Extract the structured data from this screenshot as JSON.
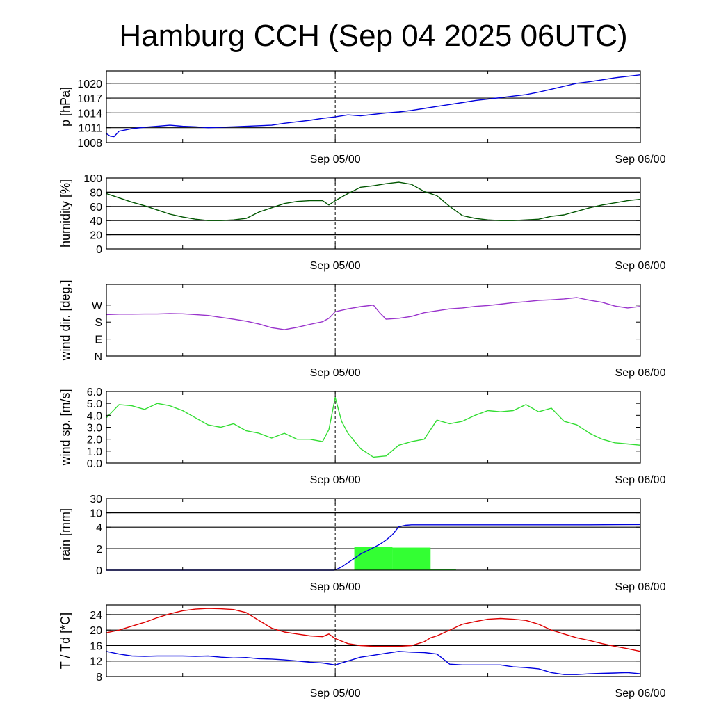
{
  "title": "Hamburg CCH (Sep 04 2025 06UTC)",
  "chart_data": [
    {
      "type": "line",
      "name": "pressure",
      "ylabel": "p [hPa]",
      "ylim": [
        1008,
        1022.5
      ],
      "yticks": [
        1008,
        1011,
        1014,
        1017,
        1020
      ],
      "xlim": [
        "Sep 04 06UTC",
        "Sep 06 00UTC"
      ],
      "xtick_labels": [
        "Sep 05/00",
        "Sep 06/00"
      ],
      "grid": "horizontal",
      "series": [
        {
          "color": "#0000dd",
          "x": [
            6,
            6.3,
            6.6,
            7,
            8,
            9,
            10,
            11,
            12,
            13,
            14,
            15,
            16,
            17,
            18,
            19,
            20,
            21,
            22,
            23,
            24,
            25,
            26,
            27,
            28,
            29,
            30,
            31,
            32,
            33,
            34,
            35,
            36,
            37,
            38,
            39,
            40,
            41,
            42,
            43,
            44,
            45,
            46,
            47,
            48
          ],
          "y": [
            1009.8,
            1009.3,
            1009.2,
            1010.3,
            1010.8,
            1011.1,
            1011.3,
            1011.5,
            1011.3,
            1011.2,
            1011,
            1011.1,
            1011.2,
            1011.3,
            1011.4,
            1011.5,
            1011.9,
            1012.2,
            1012.5,
            1012.9,
            1013.2,
            1013.6,
            1013.4,
            1013.7,
            1014,
            1014.2,
            1014.5,
            1014.9,
            1015.3,
            1015.7,
            1016.1,
            1016.5,
            1016.8,
            1017.1,
            1017.4,
            1017.7,
            1018.2,
            1018.8,
            1019.4,
            1020,
            1020.3,
            1020.7,
            1021.1,
            1021.4,
            1021.7
          ]
        }
      ]
    },
    {
      "type": "line",
      "name": "humidity",
      "ylabel": "humidity [%]",
      "ylim": [
        0,
        100
      ],
      "yticks": [
        0,
        20,
        40,
        60,
        80,
        100
      ],
      "xlim": [
        "Sep 04 06UTC",
        "Sep 06 00UTC"
      ],
      "xtick_labels": [
        "Sep 05/00",
        "Sep 06/00"
      ],
      "grid": "horizontal",
      "series": [
        {
          "color": "#005500",
          "x": [
            6,
            7,
            8,
            9,
            10,
            11,
            12,
            13,
            14,
            15,
            16,
            17,
            18,
            19,
            20,
            21,
            22,
            23,
            23.5,
            24,
            25,
            26,
            27,
            28,
            29,
            30,
            31,
            32,
            33,
            34,
            35,
            36,
            37,
            38,
            39,
            40,
            41,
            42,
            43,
            44,
            45,
            46,
            47,
            48
          ],
          "y": [
            78,
            72,
            66,
            61,
            55,
            49,
            45,
            42,
            40,
            40,
            41,
            43,
            52,
            58,
            64,
            67,
            68,
            68,
            62,
            68,
            78,
            87,
            89,
            92,
            94,
            91,
            81,
            75,
            60,
            47,
            43,
            41,
            40,
            40,
            41,
            42,
            46,
            48,
            53,
            58,
            62,
            65,
            68,
            70
          ]
        }
      ]
    },
    {
      "type": "line",
      "name": "wind direction",
      "ylabel": "wind dir. [deg.]",
      "ylim": [
        0,
        380
      ],
      "yticks": [
        0,
        90,
        180,
        270
      ],
      "ytick_labels": [
        "N",
        "E",
        "S",
        "W"
      ],
      "xlim": [
        "Sep 04 06UTC",
        "Sep 06 00UTC"
      ],
      "xtick_labels": [
        "Sep 05/00",
        "Sep 06/00"
      ],
      "grid": "none",
      "series": [
        {
          "color": "#9933cc",
          "x": [
            6,
            7,
            8,
            9,
            10,
            11,
            12,
            13,
            14,
            15,
            16,
            17,
            18,
            19,
            20,
            21,
            22,
            23,
            23.5,
            24,
            25,
            26,
            27,
            27.5,
            28,
            29,
            30,
            31,
            32,
            33,
            34,
            35,
            36,
            37,
            38,
            39,
            40,
            41,
            42,
            43,
            44,
            45,
            46,
            47,
            48
          ],
          "y": [
            220,
            222,
            222,
            223,
            223,
            225,
            224,
            220,
            215,
            205,
            195,
            185,
            170,
            150,
            140,
            152,
            168,
            182,
            200,
            235,
            250,
            262,
            270,
            230,
            195,
            200,
            210,
            230,
            240,
            250,
            255,
            263,
            268,
            275,
            283,
            288,
            295,
            298,
            303,
            310,
            296,
            285,
            265,
            255,
            263
          ]
        }
      ]
    },
    {
      "type": "line",
      "name": "wind speed",
      "ylabel": "wind sp. [m/s]",
      "ylim": [
        0,
        6
      ],
      "yticks": [
        0.0,
        1.0,
        2.0,
        3.0,
        4.0,
        5.0,
        6.0
      ],
      "ytick_labels": [
        "0.0",
        "1.0",
        "2.0",
        "3.0",
        "4.0",
        "5.0",
        "6.0"
      ],
      "xlim": [
        "Sep 04 06UTC",
        "Sep 06 00UTC"
      ],
      "xtick_labels": [
        "Sep 05/00",
        "Sep 06/00"
      ],
      "grid": "none",
      "series": [
        {
          "color": "#33dd33",
          "x": [
            6,
            7,
            8,
            9,
            10,
            11,
            12,
            13,
            14,
            15,
            16,
            17,
            18,
            19,
            20,
            21,
            22,
            23,
            23.5,
            24,
            24.5,
            25,
            26,
            27,
            28,
            29,
            30,
            31,
            32,
            33,
            34,
            35,
            36,
            37,
            38,
            39,
            40,
            41,
            42,
            43,
            44,
            45,
            46,
            47,
            48
          ],
          "y": [
            3.8,
            4.9,
            4.8,
            4.5,
            5.0,
            4.8,
            4.4,
            3.8,
            3.2,
            3.0,
            3.3,
            2.7,
            2.5,
            2.1,
            2.5,
            2.0,
            2.0,
            1.8,
            2.8,
            5.5,
            3.5,
            2.5,
            1.2,
            0.5,
            0.6,
            1.5,
            1.8,
            2.0,
            3.6,
            3.3,
            3.5,
            4.0,
            4.4,
            4.3,
            4.4,
            4.9,
            4.3,
            4.6,
            3.5,
            3.2,
            2.5,
            2.0,
            1.7,
            1.6,
            1.5
          ]
        }
      ]
    },
    {
      "type": "bar+line",
      "name": "rain",
      "ylabel": "rain [mm]",
      "ylim": [
        0,
        30
      ],
      "yticks": [
        0,
        2,
        4,
        10,
        30
      ],
      "xlim": [
        "Sep 04 06UTC",
        "Sep 06 00UTC"
      ],
      "xtick_labels": [
        "Sep 05/00",
        "Sep 06/00"
      ],
      "grid": "horizontal",
      "bars": {
        "color": "#33ff33",
        "x_start": [
          25.5,
          28.5
        ],
        "x_end": [
          28.5,
          31.5
        ],
        "values": [
          2.2,
          2.1
        ]
      },
      "series": [
        {
          "color": "#0000dd",
          "x": [
            6,
            23.9,
            24,
            24.5,
            25,
            25.5,
            26,
            26.5,
            27,
            27.5,
            28,
            28.5,
            29,
            29.5,
            30,
            31,
            33,
            36,
            40,
            44,
            48
          ],
          "y": [
            0,
            0,
            0.02,
            0.3,
            0.7,
            1.1,
            1.5,
            1.8,
            2.1,
            2.4,
            2.8,
            3.3,
            4.2,
            4.8,
            5.0,
            5.0,
            5.0,
            5.0,
            5.0,
            5.0,
            5.1
          ]
        }
      ]
    },
    {
      "type": "line",
      "name": "temperature and dew point",
      "ylabel": "T / Td [*C]",
      "ylim": [
        8,
        26.5
      ],
      "yticks": [
        8,
        12,
        16,
        20,
        24
      ],
      "xlim": [
        "Sep 04 06UTC",
        "Sep 06 00UTC"
      ],
      "xtick_labels": [
        "Sep 05/00",
        "Sep 06/00"
      ],
      "grid": "horizontal",
      "series": [
        {
          "color": "#dd0000",
          "x": [
            6,
            7,
            8,
            9,
            10,
            11,
            12,
            13,
            14,
            15,
            16,
            17,
            18,
            19,
            20,
            21,
            22,
            23,
            23.5,
            24,
            25,
            26,
            27,
            28,
            29,
            30,
            31,
            31.5,
            32,
            33,
            34,
            35,
            36,
            37,
            38,
            39,
            40,
            41,
            42,
            43,
            44,
            45,
            46,
            47,
            48
          ],
          "y": [
            19.3,
            20.0,
            21.0,
            22.0,
            23.2,
            24.2,
            25.0,
            25.4,
            25.6,
            25.5,
            25.3,
            24.5,
            22.5,
            20.5,
            19.5,
            19.0,
            18.5,
            18.3,
            19.0,
            17.8,
            16.5,
            16.0,
            15.8,
            15.8,
            15.8,
            16.0,
            17.0,
            18.0,
            18.5,
            20.0,
            21.5,
            22.2,
            22.8,
            23.0,
            22.8,
            22.5,
            21.5,
            20.0,
            19.0,
            18.0,
            17.3,
            16.5,
            15.8,
            15.2,
            14.5
          ]
        },
        {
          "color": "#0000dd",
          "x": [
            6,
            7,
            8,
            9,
            10,
            11,
            12,
            13,
            14,
            15,
            16,
            17,
            18,
            19,
            20,
            21,
            22,
            23,
            24,
            25,
            26,
            27,
            28,
            29,
            30,
            31,
            32,
            32.5,
            33,
            34,
            35,
            36,
            37,
            38,
            39,
            40,
            41,
            42,
            43,
            44,
            45,
            46,
            47,
            48
          ],
          "y": [
            14.5,
            13.8,
            13.3,
            13.2,
            13.3,
            13.3,
            13.3,
            13.2,
            13.3,
            13.0,
            12.8,
            12.9,
            12.6,
            12.5,
            12.3,
            12.0,
            11.7,
            11.5,
            11.0,
            12.0,
            13.0,
            13.5,
            14.0,
            14.5,
            14.3,
            14.2,
            13.8,
            12.5,
            11.2,
            11.0,
            11.0,
            11.0,
            11.0,
            10.5,
            10.3,
            10.0,
            9.0,
            8.5,
            8.5,
            8.7,
            8.8,
            8.9,
            9.0,
            8.7
          ]
        }
      ]
    }
  ]
}
